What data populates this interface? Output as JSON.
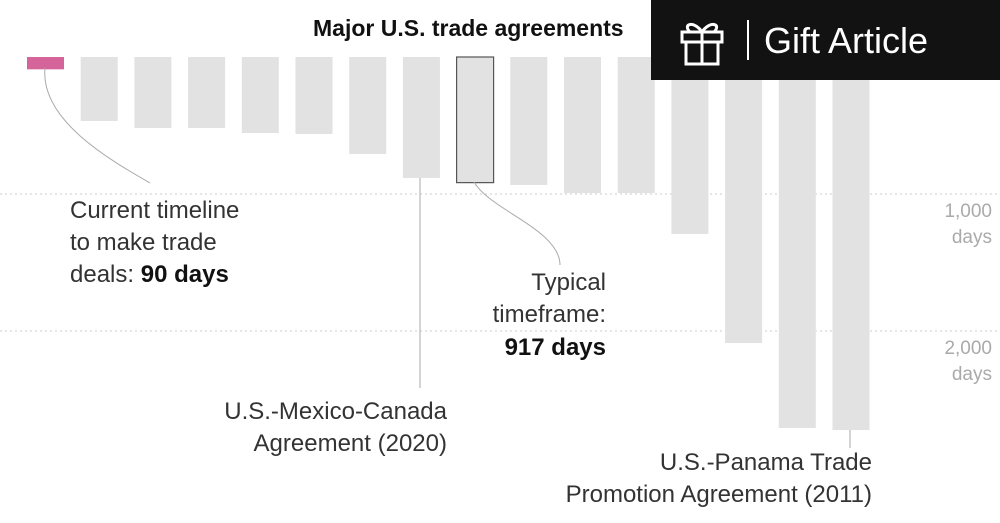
{
  "chart_data": {
    "type": "bar",
    "title": "Major U.S. trade agreements",
    "values": [
      90,
      467,
      518,
      518,
      555,
      562,
      708,
      883,
      917,
      934,
      993,
      993,
      1292,
      2088,
      2708,
      2723
    ],
    "colors": [
      "#d4649a",
      "#e2e2e2",
      "#e2e2e2",
      "#e2e2e2",
      "#e2e2e2",
      "#e2e2e2",
      "#e2e2e2",
      "#e2e2e2",
      "#e2e2e2",
      "#e2e2e2",
      "#e2e2e2",
      "#e2e2e2",
      "#e2e2e2",
      "#e2e2e2",
      "#e2e2e2",
      "#e2e2e2"
    ],
    "edge_colors": [
      null,
      null,
      null,
      null,
      null,
      null,
      null,
      null,
      "#555555",
      null,
      null,
      null,
      null,
      null,
      null,
      null
    ],
    "ylim": [
      0,
      3400
    ],
    "yticks": [
      {
        "value": 1000,
        "label": "1,000"
      },
      {
        "value": 2000,
        "label": "2,000"
      }
    ],
    "ytick_unit": "days",
    "grid": true,
    "annotations": [
      {
        "lines": [
          "Current timeline",
          "to make trade",
          "deals: "
        ],
        "bold": "90 days"
      },
      {
        "lines": [
          "Typical",
          "timeframe:"
        ],
        "bold": "917 days"
      },
      {
        "lines": [
          "U.S.-Mexico-Canada",
          "Agreement (2020)"
        ]
      },
      {
        "lines": [
          "U.S.-Panama Trade",
          "Promotion Agreement (2011)"
        ]
      }
    ]
  },
  "overlay": {
    "button": "Gift Article"
  }
}
